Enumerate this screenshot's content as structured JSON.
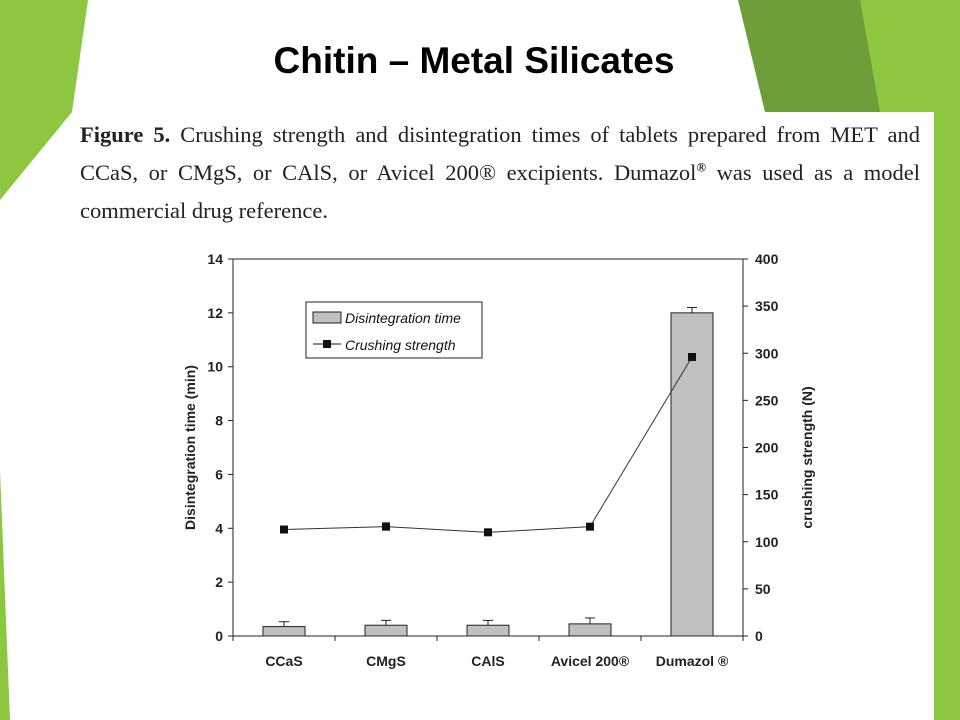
{
  "slide": {
    "title": "Chitin – Metal Silicates"
  },
  "caption": {
    "label": "Figure 5.",
    "lines": [
      "Crushing strength and disintegration times of tablets prepared from MET and",
      "CCaS, or CMgS, or CAlS, or Avicel 200® excipients. Dumazol",
      "commercial drug reference."
    ],
    "line2_sup": "®",
    "line2_rest": " was used as a model"
  },
  "colors": {
    "green_light": "#8dc63f",
    "green_dark": "#6d9e3a",
    "bar_fill": "#c0c0c0",
    "axis": "#222222"
  },
  "chart_data": {
    "type": "bar",
    "categories": [
      "CCaS",
      "CMgS",
      "CAlS",
      "Avicel 200®",
      "Dumazol ®"
    ],
    "series": [
      {
        "name": "Disintegration time",
        "type": "bar",
        "axis": "left",
        "values": [
          0.35,
          0.4,
          0.4,
          0.45,
          12.0
        ],
        "errors": [
          0.18,
          0.18,
          0.18,
          0.22,
          0.2
        ]
      },
      {
        "name": "Crushing strength",
        "type": "line",
        "axis": "right",
        "values": [
          113,
          116,
          110,
          116,
          296
        ],
        "errors": [
          3,
          4,
          3,
          3,
          3
        ]
      }
    ],
    "ylabel_left": "Disintegration time (min)",
    "ylabel_right": "crushing strength (N)",
    "ylim_left": [
      0,
      14
    ],
    "ylim_right": [
      0,
      400
    ],
    "yticks_left": [
      0,
      2,
      4,
      6,
      8,
      10,
      12,
      14
    ],
    "yticks_right": [
      0,
      50,
      100,
      150,
      200,
      250,
      300,
      350,
      400
    ],
    "grid": false,
    "legend_position": "top-left"
  }
}
